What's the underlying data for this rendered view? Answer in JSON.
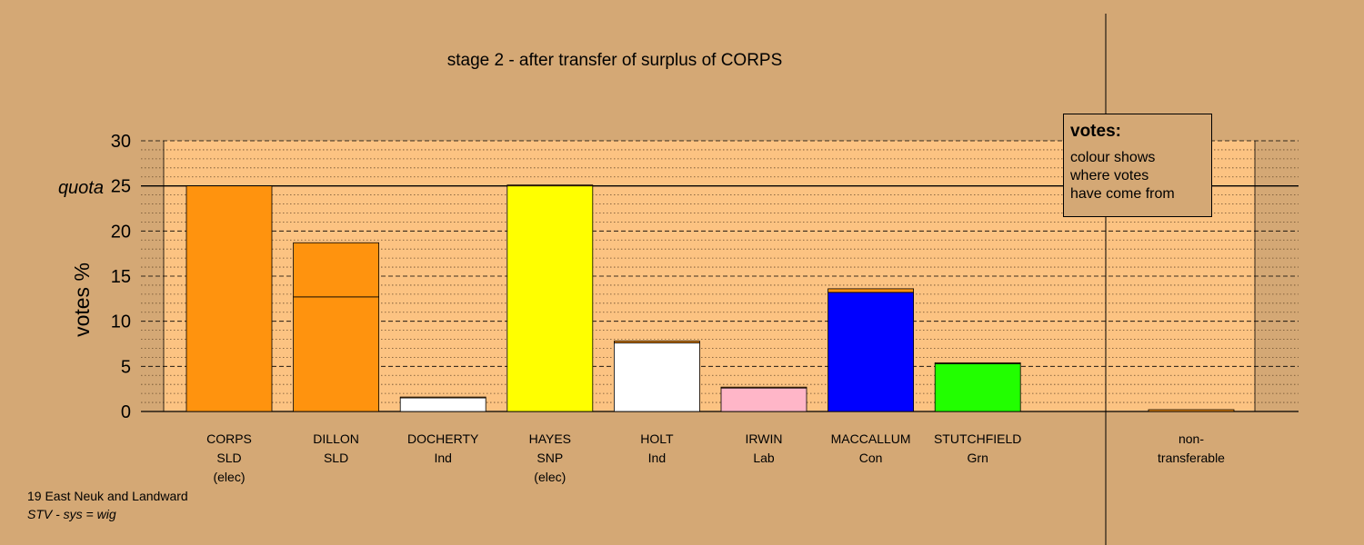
{
  "chart_data": {
    "type": "bar",
    "title": "stage 2 - after transfer of surplus of CORPS",
    "ylabel": "votes %",
    "ylim": [
      0,
      30
    ],
    "yticks": [
      0,
      5,
      10,
      15,
      20,
      25,
      30
    ],
    "quota": 25,
    "quota_label": "quota",
    "candidates": [
      {
        "name": "CORPS",
        "party": "SLD",
        "status": "(elec)",
        "total": 25.0,
        "segments": [
          {
            "from": "SLD",
            "color": "#ff930e",
            "value": 25.0
          }
        ]
      },
      {
        "name": "DILLON",
        "party": "SLD",
        "status": "",
        "total": 18.7,
        "segments": [
          {
            "from": "SLD",
            "color": "#ff930e",
            "value": 12.7
          },
          {
            "from": "CORPS transfer",
            "color": "#ff930e",
            "value": 6.0
          }
        ]
      },
      {
        "name": "DOCHERTY",
        "party": "Ind",
        "status": "",
        "total": 1.6,
        "segments": [
          {
            "from": "Ind",
            "color": "#ffffff",
            "value": 1.5
          },
          {
            "from": "CORPS transfer",
            "color": "#ff930e",
            "value": 0.1
          }
        ]
      },
      {
        "name": "HAYES",
        "party": "SNP",
        "status": "(elec)",
        "total": 25.1,
        "segments": [
          {
            "from": "SNP",
            "color": "#ffff00",
            "value": 25.0
          },
          {
            "from": "CORPS transfer",
            "color": "#ff930e",
            "value": 0.1
          }
        ]
      },
      {
        "name": "HOLT",
        "party": "Ind",
        "status": "",
        "total": 7.8,
        "segments": [
          {
            "from": "Ind",
            "color": "#ffffff",
            "value": 7.6
          },
          {
            "from": "CORPS transfer",
            "color": "#ff930e",
            "value": 0.2
          }
        ]
      },
      {
        "name": "IRWIN",
        "party": "Lab",
        "status": "",
        "total": 2.7,
        "segments": [
          {
            "from": "Lab",
            "color": "#ffb6c8",
            "value": 2.6
          },
          {
            "from": "CORPS transfer",
            "color": "#ff930e",
            "value": 0.1
          }
        ]
      },
      {
        "name": "MACCALLUM",
        "party": "Con",
        "status": "",
        "total": 13.6,
        "segments": [
          {
            "from": "Con",
            "color": "#0000ff",
            "value": 13.2
          },
          {
            "from": "CORPS transfer",
            "color": "#ff930e",
            "value": 0.4
          }
        ]
      },
      {
        "name": "STUTCHFIELD",
        "party": "Grn",
        "status": "",
        "total": 5.4,
        "segments": [
          {
            "from": "Grn",
            "color": "#22ff00",
            "value": 5.3
          },
          {
            "from": "CORPS transfer",
            "color": "#ff930e",
            "value": 0.1
          }
        ]
      }
    ],
    "non_transferable": {
      "label_line1": "non-",
      "label_line2": "transferable",
      "value": 0.2,
      "color": "#ff930e"
    },
    "legend": {
      "title": "votes:",
      "lines": [
        "colour shows",
        "where votes",
        "have come from"
      ],
      "placement": "top-right"
    }
  },
  "footer": {
    "constituency": "19 East Neuk and Landward",
    "system": "STV - sys = wig"
  },
  "colors": {
    "background": "#d4a875",
    "plot_background": "#fcc382"
  }
}
